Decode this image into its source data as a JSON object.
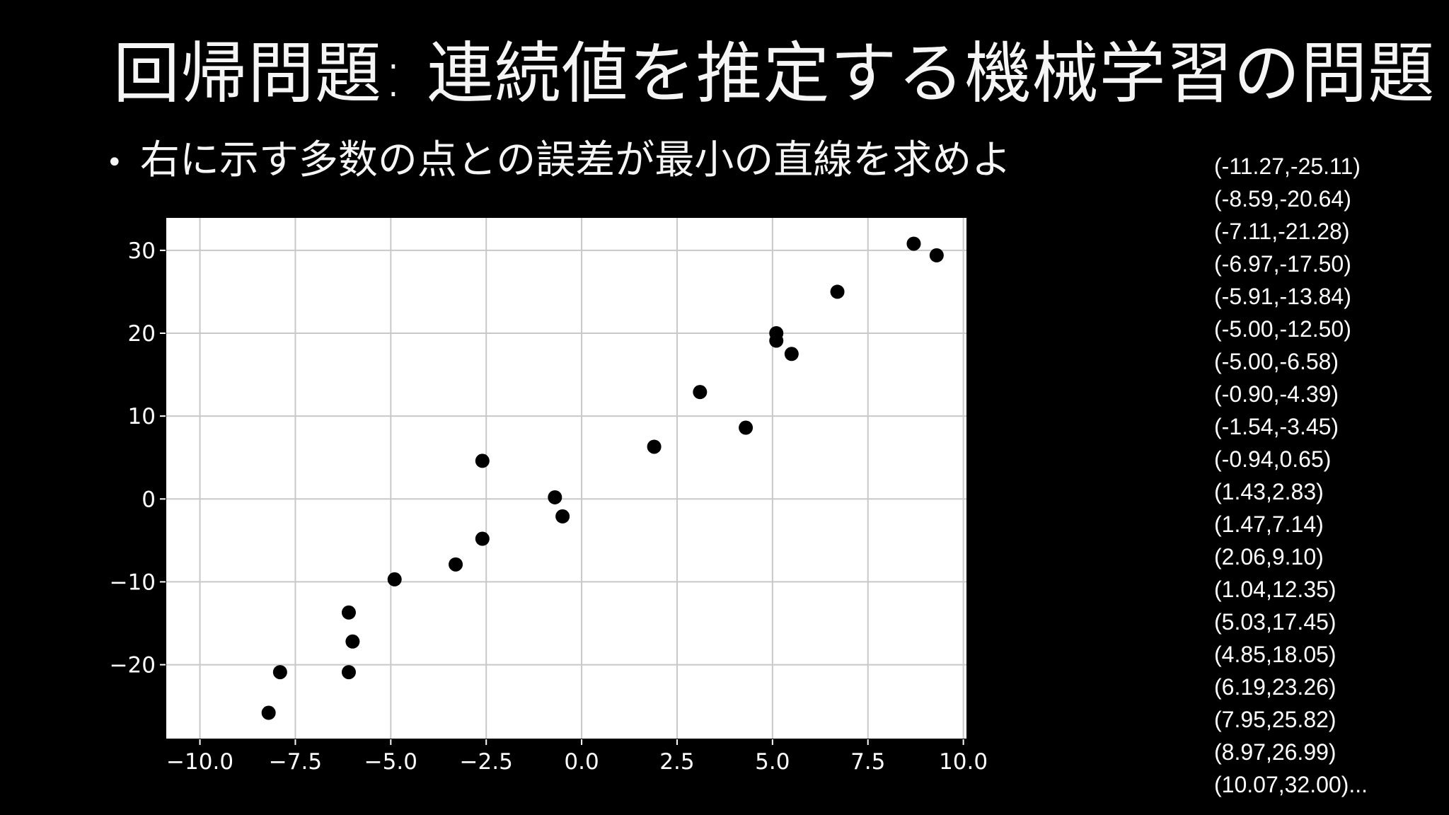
{
  "slide": {
    "title": "回帰問題: 連続値を推定する機械学習の問題",
    "bullet_symbol": "•",
    "bullet": "右に示す多数の点との誤差が最小の直線を求めよ",
    "point_list": [
      "(-11.27,-25.11)",
      "(-8.59,-20.64)",
      "(-7.11,-21.28)",
      "(-6.97,-17.50)",
      "(-5.91,-13.84)",
      "(-5.00,-12.50)",
      "(-5.00,-6.58)",
      "(-0.90,-4.39)",
      "(-1.54,-3.45)",
      "(-0.94,0.65)",
      "(1.43,2.83)",
      "(1.47,7.14)",
      "(2.06,9.10)",
      "(1.04,12.35)",
      "(5.03,17.45)",
      "(4.85,18.05)",
      "(6.19,23.26)",
      "(7.95,25.82)",
      "(8.97,26.99)",
      "(10.07,32.00)..."
    ]
  },
  "chart_data": {
    "type": "scatter",
    "title": "",
    "xlabel": "",
    "ylabel": "",
    "xlim": [
      -10.9,
      10.1
    ],
    "ylim": [
      -29,
      34
    ],
    "x_ticks": [
      -10.0,
      -7.5,
      -5.0,
      -2.5,
      0.0,
      2.5,
      5.0,
      7.5,
      10.0
    ],
    "x_tick_labels": [
      "−10.0",
      "−7.5",
      "−5.0",
      "−2.5",
      "0.0",
      "2.5",
      "5.0",
      "7.5",
      "10.0"
    ],
    "y_ticks": [
      -20,
      -10,
      0,
      10,
      20,
      30
    ],
    "y_tick_labels": [
      "−20",
      "−10",
      "0",
      "10",
      "20",
      "30"
    ],
    "grid": true,
    "colors": {
      "plot_background": "#ffffff",
      "grid": "#c8c8c8",
      "marker": "#000000",
      "tick_text": "#ffffff"
    },
    "series": [
      {
        "points": [
          [
            -8.2,
            -25.8
          ],
          [
            -7.9,
            -20.9
          ],
          [
            -6.1,
            -20.9
          ],
          [
            -6.0,
            -17.2
          ],
          [
            -6.1,
            -13.7
          ],
          [
            -4.9,
            -9.7
          ],
          [
            -3.3,
            -7.9
          ],
          [
            -2.6,
            -4.8
          ],
          [
            -2.6,
            4.6
          ],
          [
            -0.7,
            0.2
          ],
          [
            -0.5,
            -2.1
          ],
          [
            1.9,
            6.3
          ],
          [
            3.1,
            12.9
          ],
          [
            4.3,
            8.6
          ],
          [
            5.1,
            20.0
          ],
          [
            5.1,
            19.1
          ],
          [
            5.5,
            17.5
          ],
          [
            6.7,
            25.0
          ],
          [
            8.7,
            30.8
          ],
          [
            9.3,
            29.4
          ]
        ]
      }
    ]
  }
}
